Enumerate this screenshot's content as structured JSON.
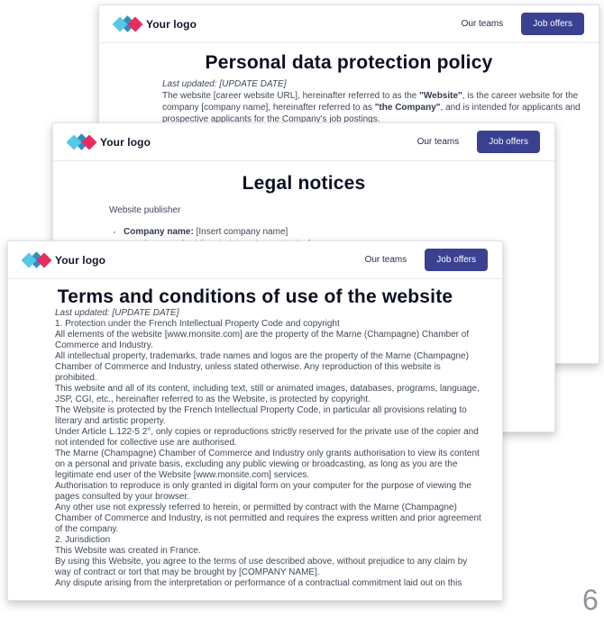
{
  "colors": {
    "accent_button": "#3a4191",
    "logo_cyan": "#57c7ea",
    "logo_blue": "#2a90bf",
    "logo_pink": "#eb2b5d",
    "title_text": "#0d1022",
    "body_text": "#3f4856"
  },
  "header": {
    "logo_text": "Your logo",
    "our_teams": "Our teams",
    "job_offers": "Job offers"
  },
  "background": {
    "page_number": "6"
  },
  "cards": {
    "personal_data": {
      "title": "Personal data protection policy",
      "last_updated": "Last updated: [UPDATE DATE]",
      "lines": [
        {
          "pre": "The website [career website URL], hereinafter referred to as the ",
          "bold": "\"Website\"",
          "post": ", is the career website for the"
        },
        {
          "pre": "company [company name], hereinafter referred to as ",
          "bold": "\"the Company\"",
          "post": ", and is intended for applicants and"
        },
        {
          "pre": "prospective applicants for the Company's job postings.",
          "bold": "",
          "post": ""
        }
      ]
    },
    "legal_notices": {
      "title": "Legal notices",
      "intro": "Website publisher",
      "bullets": [
        {
          "label": "Company name:",
          "value": " [Insert company name]"
        },
        {
          "label": "Legal status:",
          "value": " [Public Administrative Institution]"
        }
      ]
    },
    "terms": {
      "title": "Terms and conditions of use of the website",
      "last_updated": "Last updated: [UPDATE DATE]",
      "body": "1. Protection under the French Intellectual Property Code and copyright\nAll elements of the website [www.monsite.com] are the property of the Marne (Champagne) Chamber of\nCommerce and Industry.\nAll intellectual property, trademarks, trade names and logos are the property of the Marne (Champagne)\nChamber of Commerce and Industry, unless stated otherwise. Any reproduction of this website is\nprohibited.\nThis website and all of its content, including text, still or animated images, databases, programs, language,\nJSP, CGI, etc., hereinafter referred to as the Website, is protected by copyright.\nThe Website is protected by the French Intellectual Property Code, in particular all provisions relating to\nliterary and artistic property.\nUnder Article L.122-5 2°, only copies or reproductions strictly reserved for the private use of the copier and\nnot intended for collective use are authorised.\nThe Marne (Champagne) Chamber of Commerce and Industry only grants authorisation to view its content\non a personal and private basis, excluding any public viewing or broadcasting, as long as you are the\nlegitimate end user of the Website [www.monsite.com] services.\nAuthorisation to reproduce is only granted in digital form on your computer for the purpose of viewing the\npages consulted by your browser.\nAny other use not expressly referred to herein, or permitted by contract with the Marne (Champagne)\nChamber of Commerce and Industry, is not permitted and requires the express written and prior agreement\nof the company.\n2. Jurisdiction\nThis Website was created in France.\nBy using this Website, you agree to the terms of use described above, without prejudice to any claim by\nway of contract or tort that may be brought by [COMPANY NAME].\nAny dispute arising from the interpretation or performance of a contractual commitment laid out on this"
    }
  }
}
